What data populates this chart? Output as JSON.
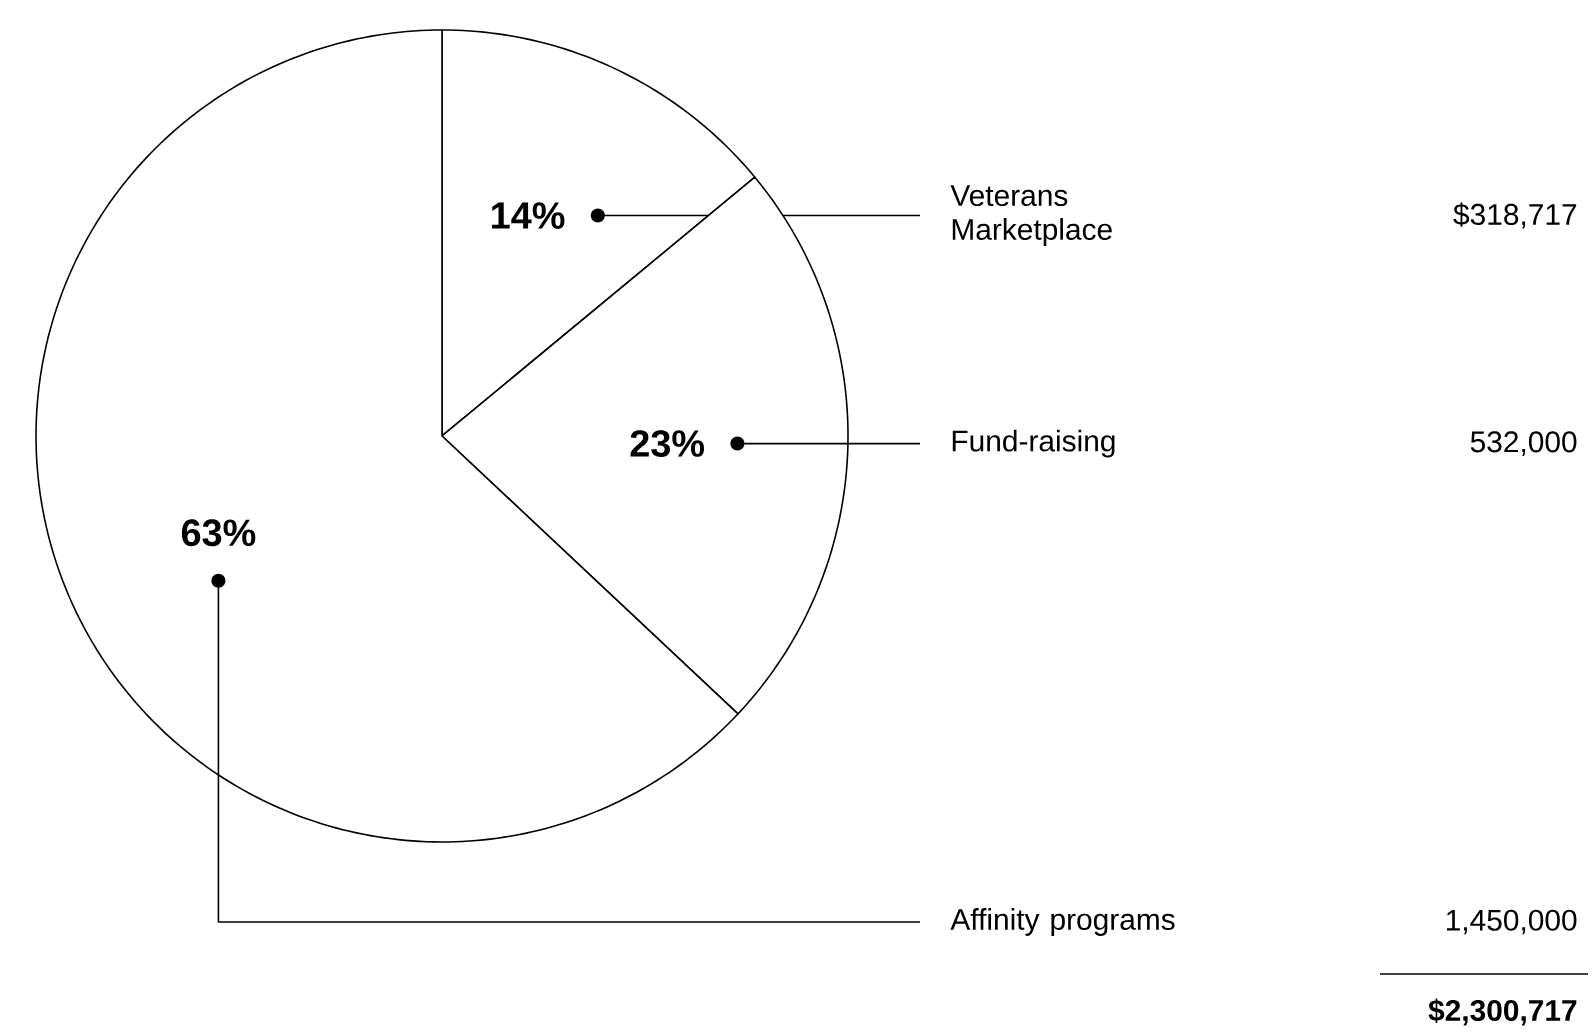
{
  "chart_data": {
    "type": "pie",
    "categories": [
      "Veterans Marketplace",
      "Fund-raising",
      "Affinity programs"
    ],
    "values": [
      14,
      23,
      63
    ],
    "colors": [
      "#ffffff",
      "#ffffff",
      "#ffffff"
    ],
    "value_labels": [
      "14%",
      "23%",
      "63%"
    ],
    "annotations": [
      "$318,717",
      "532,000",
      "1,450,000",
      "$2,300,717"
    ]
  }
}
